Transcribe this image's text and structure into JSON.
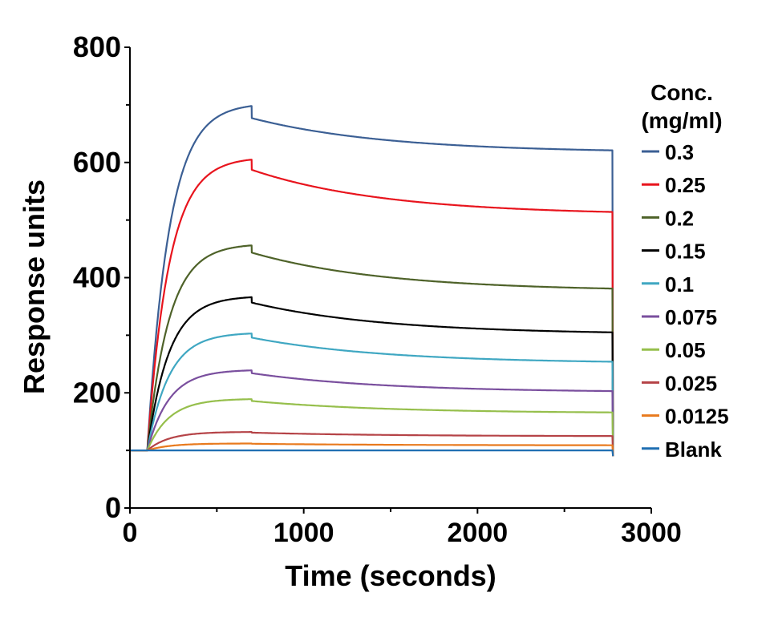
{
  "chart_data": {
    "type": "line",
    "title": "",
    "xlabel": "Time (seconds)",
    "ylabel": "Response units",
    "xlim": [
      0,
      3000
    ],
    "ylim": [
      0,
      800
    ],
    "xticks": [
      0,
      1000,
      2000,
      3000
    ],
    "yticks": [
      0,
      200,
      400,
      600,
      800
    ],
    "grid": false,
    "legend_position": "right",
    "legend_title": [
      "Conc.",
      "(mg/ml)"
    ],
    "baseline": 100,
    "injection_start": 100,
    "injection_end": 700,
    "dissociation_end": 2780,
    "series": [
      {
        "name": "0.3",
        "color": "#3b5f94",
        "peak": 698,
        "end": 621
      },
      {
        "name": "0.25",
        "color": "#e8141d",
        "peak": 605,
        "end": 514
      },
      {
        "name": "0.2",
        "color": "#4e6229",
        "peak": 456,
        "end": 381
      },
      {
        "name": "0.15",
        "color": "#000000",
        "peak": 366,
        "end": 305
      },
      {
        "name": "0.1",
        "color": "#3fa7c2",
        "peak": 303,
        "end": 254
      },
      {
        "name": "0.075",
        "color": "#7a4f9e",
        "peak": 239,
        "end": 203
      },
      {
        "name": "0.05",
        "color": "#96bf4c",
        "peak": 189,
        "end": 166
      },
      {
        "name": "0.025",
        "color": "#b54347",
        "peak": 132,
        "end": 125
      },
      {
        "name": "0.0125",
        "color": "#e87a1e",
        "peak": 112,
        "end": 109
      },
      {
        "name": "Blank",
        "color": "#1f6fb2",
        "peak": 100,
        "end": 100
      }
    ]
  }
}
